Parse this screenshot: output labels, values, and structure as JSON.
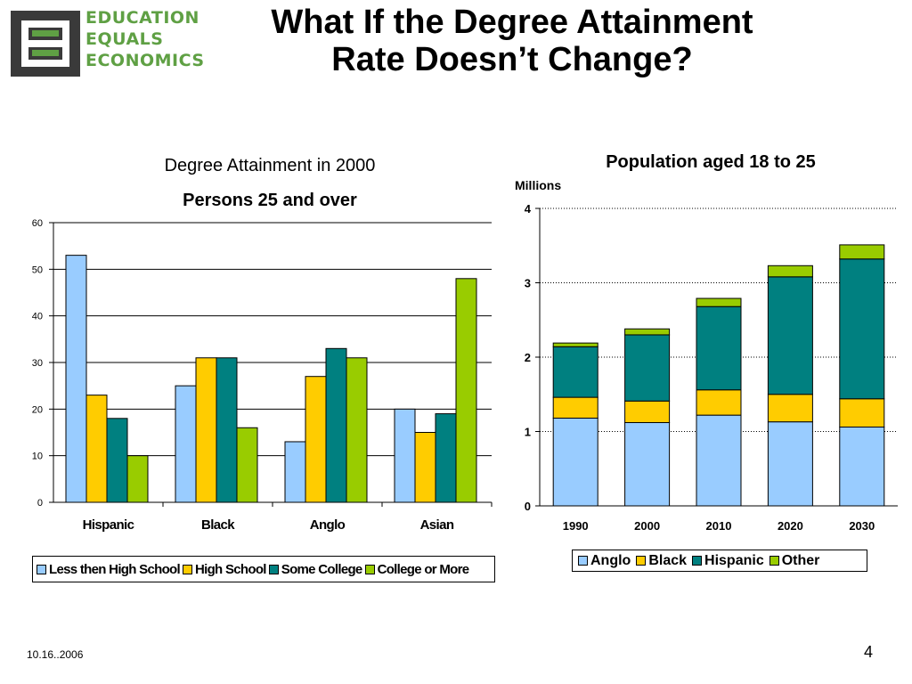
{
  "logo": {
    "icon": "education-equals-economics-logo",
    "lines": [
      "EDUCATION",
      "EQUALS",
      "ECONOMICS"
    ],
    "color": "#5fa044",
    "mark_color": "#3a3a3a"
  },
  "slide": {
    "title_line1": "What If the Degree Attainment",
    "title_line2": "Rate Doesn’t Change?",
    "date": "10.16..2006",
    "page_number": "4"
  },
  "chart_data": [
    {
      "type": "bar",
      "title": "Degree Attainment in 2000",
      "subtitle": "Persons 25 and over",
      "categories": [
        "Hispanic",
        "Black",
        "Anglo",
        "Asian"
      ],
      "series": [
        {
          "name": "Less then High School",
          "color": "#99ccff",
          "values": [
            53,
            25,
            13,
            20
          ]
        },
        {
          "name": "High School",
          "color": "#ffcc00",
          "values": [
            23,
            31,
            27,
            15
          ]
        },
        {
          "name": "Some College",
          "color": "#008080",
          "values": [
            18,
            31,
            33,
            19
          ]
        },
        {
          "name": "College or More",
          "color": "#99cc00",
          "values": [
            10,
            16,
            31,
            48
          ]
        }
      ],
      "ylim": [
        0,
        60
      ],
      "yticks": [
        0,
        10,
        20,
        30,
        40,
        50,
        60
      ],
      "grid": true,
      "legend": "bottom"
    },
    {
      "type": "bar",
      "stacked": true,
      "title": "Population aged 18 to 25",
      "ylabel": "Millions",
      "categories": [
        "1990",
        "2000",
        "2010",
        "2020",
        "2030"
      ],
      "series": [
        {
          "name": "Anglo",
          "color": "#99ccff",
          "values": [
            1.18,
            1.12,
            1.22,
            1.13,
            1.06
          ]
        },
        {
          "name": "Black",
          "color": "#ffcc00",
          "values": [
            0.28,
            0.29,
            0.34,
            0.37,
            0.38
          ]
        },
        {
          "name": "Hispanic",
          "color": "#008080",
          "values": [
            0.68,
            0.89,
            1.12,
            1.58,
            1.88
          ]
        },
        {
          "name": "Other",
          "color": "#99cc00",
          "values": [
            0.05,
            0.08,
            0.11,
            0.15,
            0.19
          ]
        }
      ],
      "ylim": [
        0,
        4
      ],
      "yticks": [
        0,
        1,
        2,
        3,
        4
      ],
      "grid": "dotted",
      "legend": "bottom"
    }
  ]
}
